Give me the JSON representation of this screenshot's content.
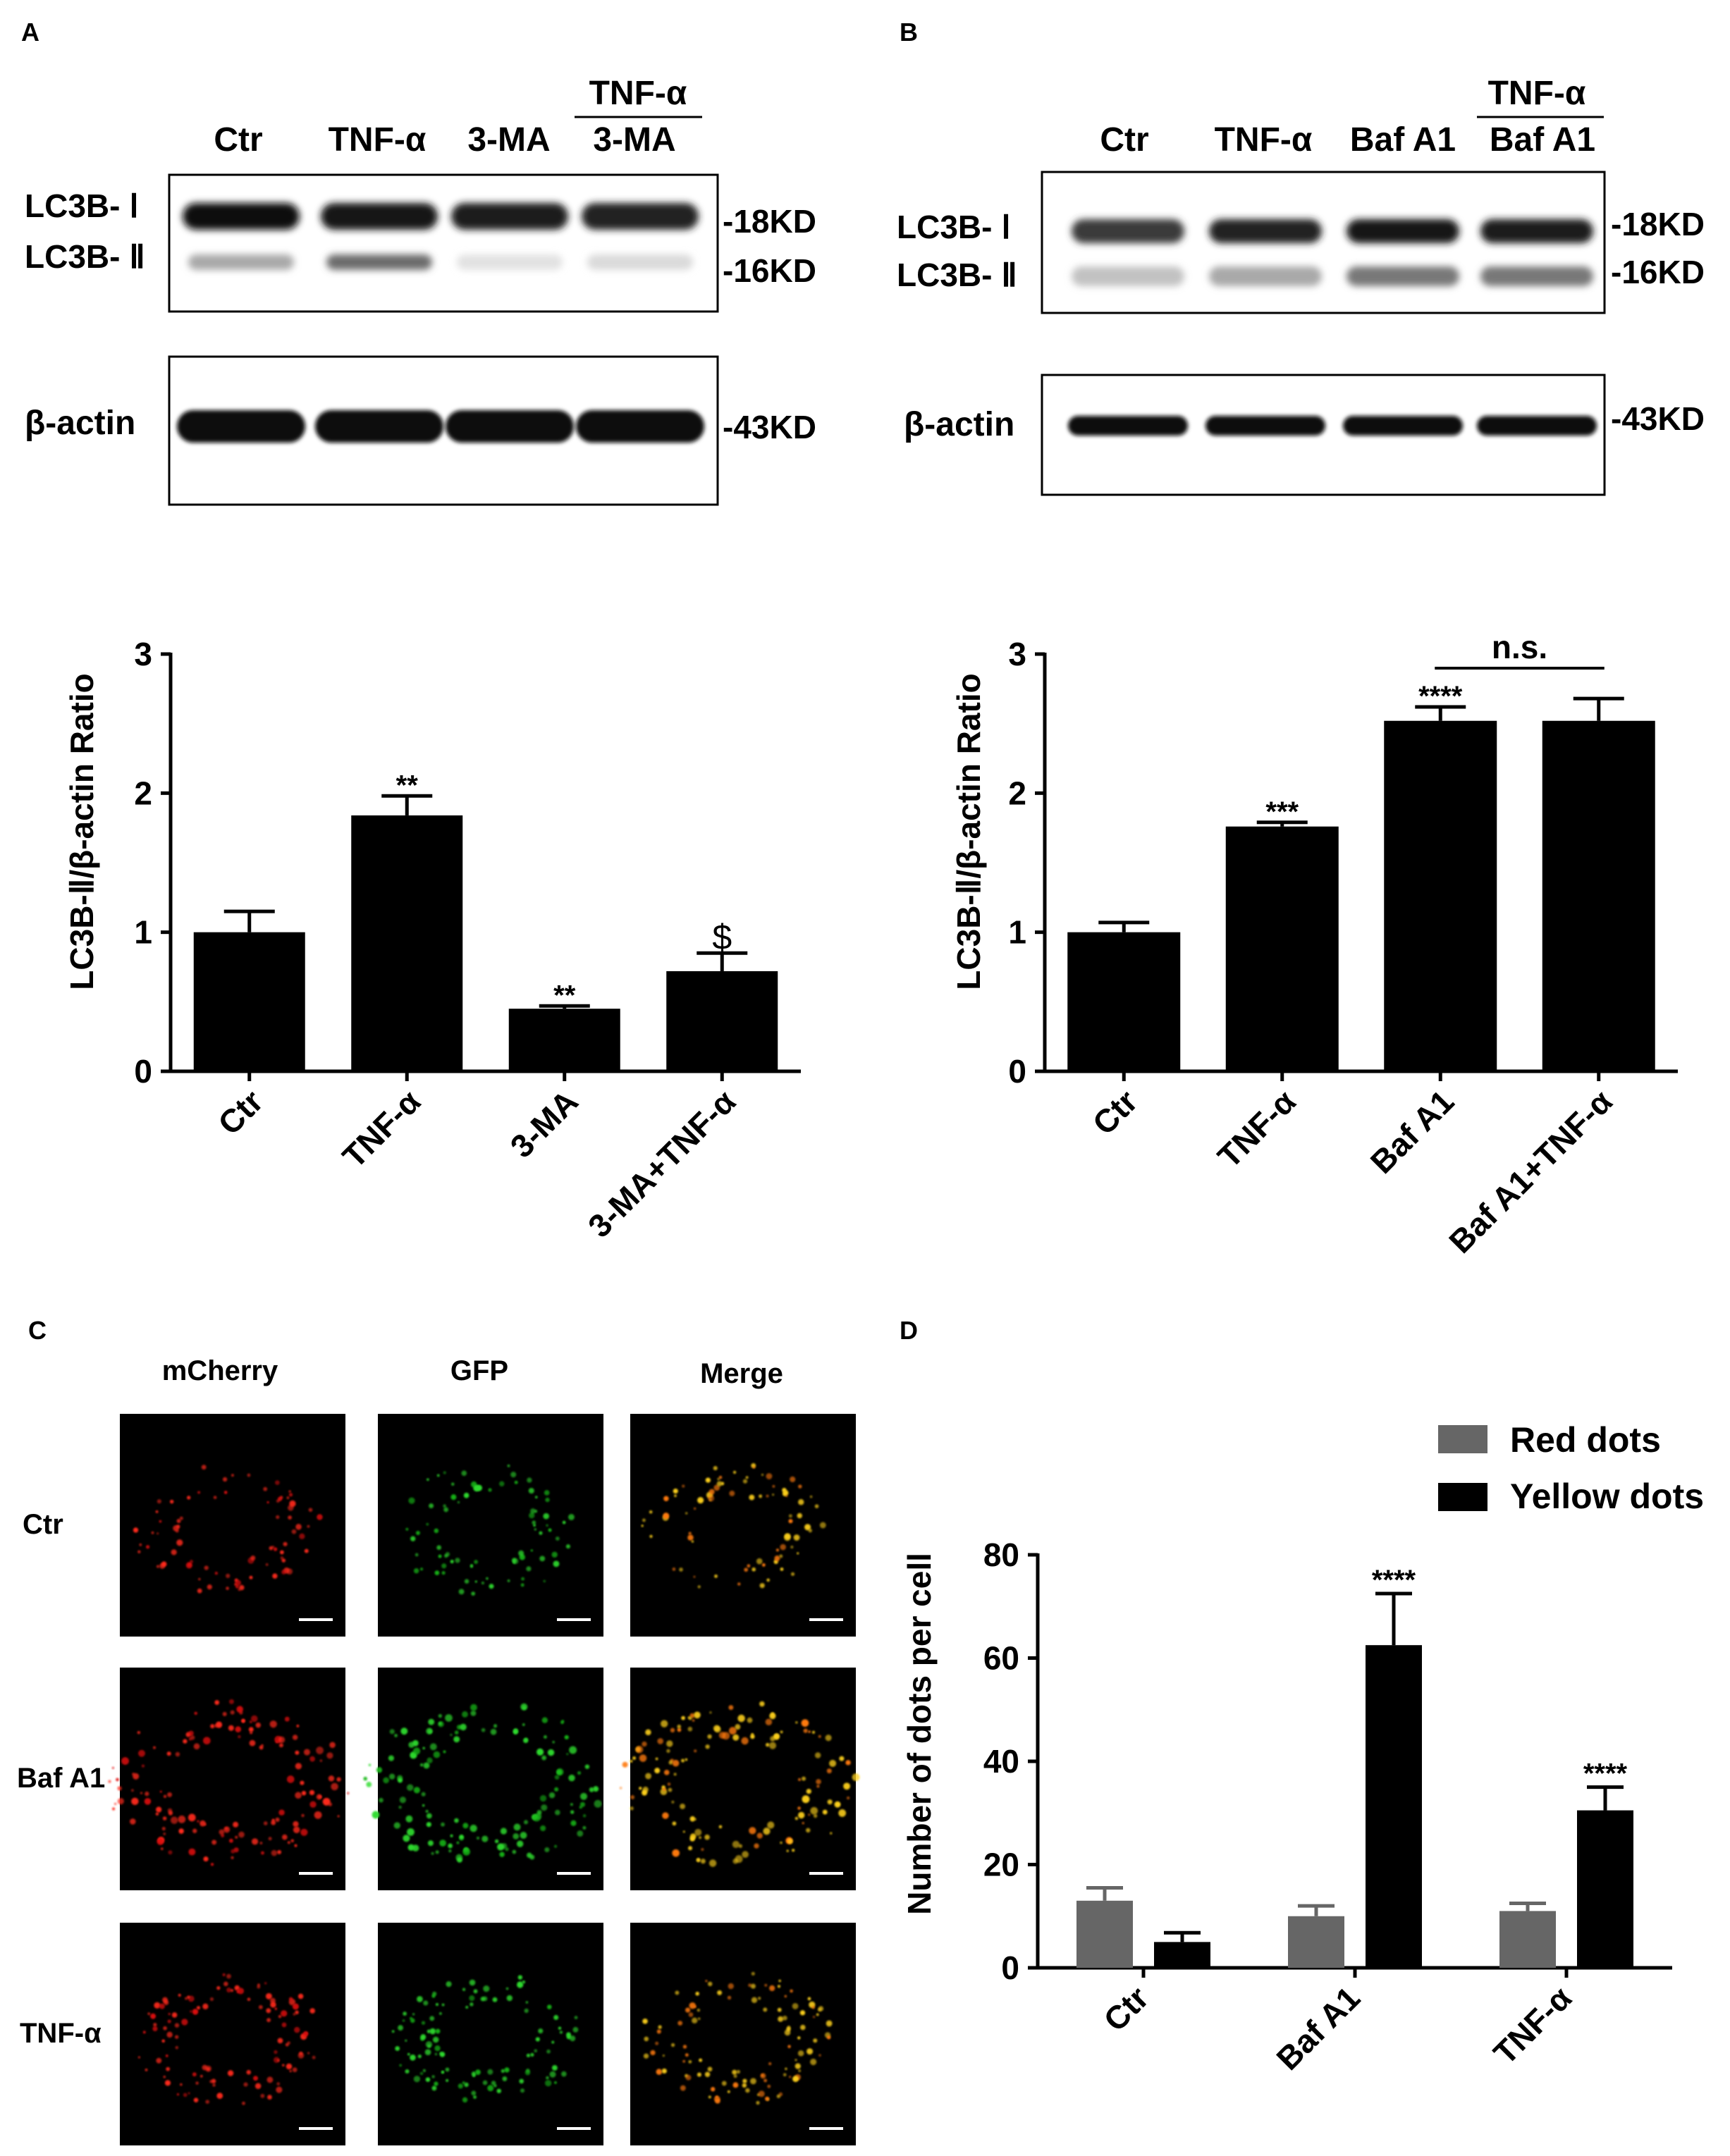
{
  "panels": {
    "A": {
      "letter": "A",
      "blot": {
        "lanes": [
          "Ctr",
          "TNF-α",
          "3-MA",
          "3-MA"
        ],
        "lane_header_top": "TNF-α",
        "rows_left": [
          "LC3B- Ⅰ",
          "LC3B- Ⅱ",
          "β-actin"
        ],
        "markers": [
          "-18KD",
          "-16KD",
          "-43KD"
        ],
        "band_intensity": {
          "lc3b_1": [
            1.0,
            0.95,
            0.92,
            0.9
          ],
          "lc3b_2": [
            0.35,
            0.6,
            0.12,
            0.15
          ],
          "actin": [
            1.0,
            1.0,
            1.0,
            1.0
          ]
        }
      }
    },
    "B": {
      "letter": "B",
      "blot": {
        "lanes": [
          "Ctr",
          "TNF-α",
          "Baf A1",
          "Baf A1"
        ],
        "lane_header_top": "TNF-α",
        "rows_left": [
          "LC3B- Ⅰ",
          "LC3B- Ⅱ",
          "β-actin"
        ],
        "markers": [
          "-18KD",
          "-16KD",
          "-43KD"
        ],
        "band_intensity": {
          "lc3b_1": [
            0.8,
            0.9,
            0.95,
            0.92
          ],
          "lc3b_2": [
            0.25,
            0.35,
            0.55,
            0.55
          ],
          "actin": [
            1.0,
            1.0,
            1.0,
            1.0
          ]
        }
      }
    },
    "C": {
      "letter": "C",
      "columns": [
        "mCherry",
        "GFP",
        "Merge"
      ],
      "rows": [
        "Ctr",
        "Baf A1",
        "TNF-α"
      ]
    },
    "D": {
      "letter": "D"
    }
  },
  "chart_data": [
    {
      "id": "A",
      "type": "bar",
      "categories": [
        "Ctr",
        "TNF-α",
        "3-MA",
        "3-MA+TNF-α"
      ],
      "values": [
        1.0,
        1.84,
        0.45,
        0.72
      ],
      "errors": [
        0.15,
        0.14,
        0.02,
        0.13
      ],
      "annotations": [
        "",
        "**",
        "**",
        "$"
      ],
      "ylabel": "LC3B-Ⅱ/β-actin Ratio",
      "ylim": [
        0,
        3
      ],
      "yticks": [
        0,
        1,
        2,
        3
      ],
      "color": "#000000",
      "grid": false
    },
    {
      "id": "B",
      "type": "bar",
      "categories": [
        "Ctr",
        "TNF-α",
        "Baf A1",
        "Baf A1+TNF-α"
      ],
      "values": [
        1.0,
        1.76,
        2.52,
        2.52
      ],
      "errors": [
        0.07,
        0.03,
        0.1,
        0.16
      ],
      "annotations": [
        "",
        "***",
        "****",
        ""
      ],
      "bracket": {
        "from": 2,
        "to": 3,
        "label": "n.s."
      },
      "ylabel": "LC3B-Ⅱ/β-actin Ratio",
      "ylim": [
        0,
        3
      ],
      "yticks": [
        0,
        1,
        2,
        3
      ],
      "color": "#000000",
      "grid": false
    },
    {
      "id": "D",
      "type": "bar",
      "categories": [
        "Ctr",
        "Baf A1",
        "TNF-α"
      ],
      "series": [
        {
          "name": "Red dots",
          "values": [
            13,
            10,
            11
          ],
          "errors": [
            2.5,
            2,
            1.5
          ],
          "color": "#666666",
          "annotations": [
            "",
            "",
            ""
          ]
        },
        {
          "name": "Yellow dots",
          "values": [
            5,
            62.5,
            30.5
          ],
          "errors": [
            1.8,
            10,
            4.5
          ],
          "color": "#000000",
          "annotations": [
            "",
            "****",
            "****"
          ]
        }
      ],
      "ylabel": "Number of dots per cell",
      "ylim": [
        0,
        80
      ],
      "yticks": [
        0,
        20,
        40,
        60,
        80
      ],
      "legend_position": "top-right",
      "grid": false
    }
  ]
}
